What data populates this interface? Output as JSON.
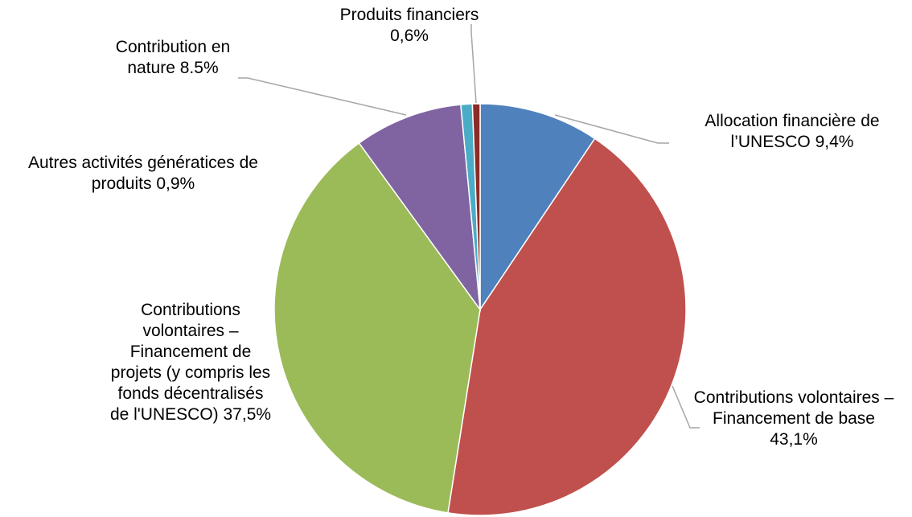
{
  "chart_data": {
    "type": "pie",
    "categories": [
      "Allocation financière de l’UNESCO",
      "Contributions volontaires – Financement de base",
      "Contributions volontaires – Financement de projets (y compris les fonds décentralisés de l'UNESCO)",
      "Contribution en nature",
      "Autres activités génératices de produits",
      "Produits financiers"
    ],
    "values": [
      9.4,
      43.1,
      37.5,
      8.5,
      0.9,
      0.6
    ],
    "value_labels": [
      "9,4%",
      "43,1%",
      "37,5%",
      "8.5%",
      "0,9%",
      "0,6%"
    ],
    "colors": [
      "#4f81bd",
      "#c0504d",
      "#9bbb59",
      "#8064a2",
      "#4bacc6",
      "#8b2c28"
    ]
  }
}
